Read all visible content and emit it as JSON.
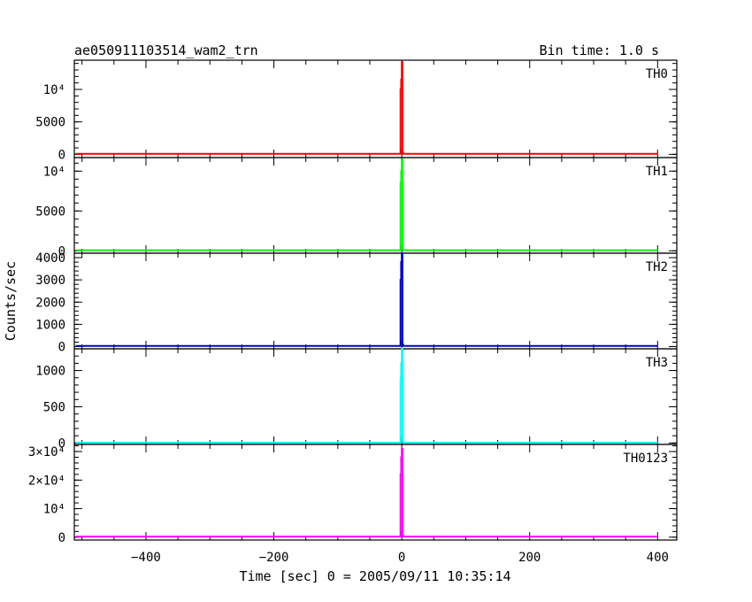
{
  "chart_data": {
    "type": "line",
    "title": "ae050911103514_wam2_trn",
    "subtitle": "Bin time: 1.0 s",
    "xlabel": "Time [sec] 0 = 2005/09/11 10:35:14",
    "ylabel": "Counts/sec",
    "xlim": [
      -512,
      430
    ],
    "x_ticks": [
      {
        "value": -400,
        "label": "−400"
      },
      {
        "value": -200,
        "label": "−200"
      },
      {
        "value": 0,
        "label": "0"
      },
      {
        "value": 200,
        "label": "200"
      },
      {
        "value": 400,
        "label": "400"
      }
    ],
    "grid": false,
    "panels": [
      {
        "name": "TH0",
        "color": "#ff0000",
        "ylim": [
          -500,
          14500
        ],
        "y_ticks": [
          {
            "value": 0,
            "label": "0"
          },
          {
            "value": 5000,
            "label": "5000"
          },
          {
            "value": 10000,
            "label": "10⁴"
          }
        ],
        "x": [
          -510,
          -4,
          -3,
          -2,
          -1,
          0,
          1,
          2,
          400
        ],
        "values": [
          80,
          80,
          80,
          10000,
          11500,
          14200,
          300,
          80,
          80
        ]
      },
      {
        "name": "TH1",
        "color": "#00ff00",
        "ylim": [
          -300,
          11700
        ],
        "y_ticks": [
          {
            "value": 0,
            "label": "0"
          },
          {
            "value": 5000,
            "label": "5000"
          },
          {
            "value": 10000,
            "label": "10⁴"
          }
        ],
        "x": [
          -510,
          -4,
          -3,
          -2,
          -1,
          0,
          1,
          2,
          400
        ],
        "values": [
          80,
          80,
          80,
          8500,
          10000,
          11500,
          300,
          80,
          80
        ]
      },
      {
        "name": "TH2",
        "color": "#0000cc",
        "ylim": [
          -100,
          4200
        ],
        "y_ticks": [
          {
            "value": 0,
            "label": "0"
          },
          {
            "value": 1000,
            "label": "1000"
          },
          {
            "value": 2000,
            "label": "2000"
          },
          {
            "value": 3000,
            "label": "3000"
          },
          {
            "value": 4000,
            "label": "4000"
          }
        ],
        "x": [
          -510,
          -4,
          -3,
          -2,
          -1,
          0,
          1,
          2,
          400
        ],
        "values": [
          30,
          30,
          30,
          3000,
          3800,
          4200,
          100,
          30,
          30
        ]
      },
      {
        "name": "TH3",
        "color": "#00ffff",
        "ylim": [
          -20,
          1300
        ],
        "y_ticks": [
          {
            "value": 0,
            "label": "0"
          },
          {
            "value": 500,
            "label": "500"
          },
          {
            "value": 1000,
            "label": "1000"
          }
        ],
        "x": [
          -510,
          -4,
          -3,
          -2,
          -1,
          0,
          1,
          2,
          400
        ],
        "values": [
          5,
          5,
          5,
          900,
          1100,
          1300,
          30,
          5,
          5
        ]
      },
      {
        "name": "TH0123",
        "color": "#ff00ff",
        "ylim": [
          -1000,
          32500
        ],
        "y_ticks": [
          {
            "value": 0,
            "label": "0"
          },
          {
            "value": 10000,
            "label": "10⁴"
          },
          {
            "value": 20000,
            "label": "2×10⁴"
          },
          {
            "value": 30000,
            "label": "3×10⁴"
          }
        ],
        "x": [
          -510,
          -4,
          -3,
          -2,
          -1,
          0,
          1,
          2,
          400
        ],
        "values": [
          200,
          200,
          200,
          22000,
          28000,
          31000,
          600,
          200,
          200
        ]
      }
    ]
  }
}
